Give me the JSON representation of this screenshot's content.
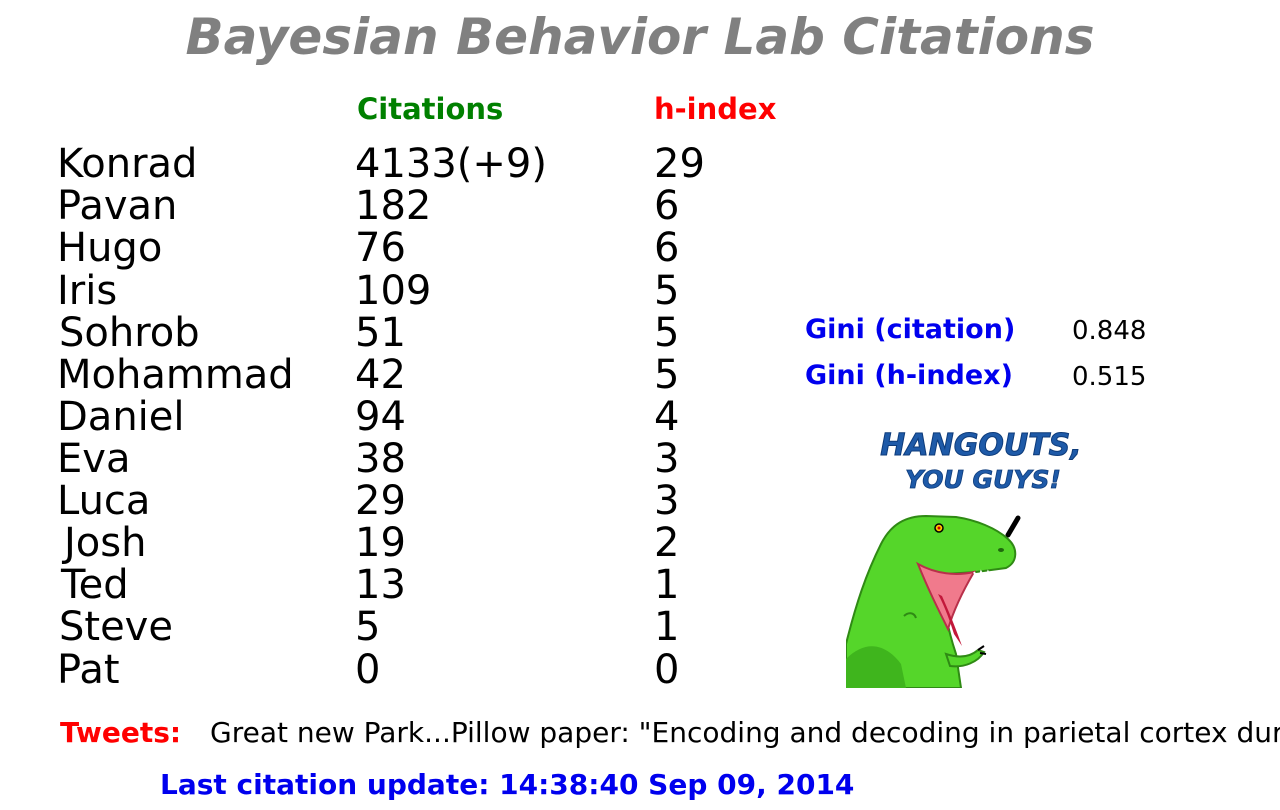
{
  "title": "Bayesian Behavior Lab Citations",
  "headers": {
    "citations": "Citations",
    "hindex": "h-index"
  },
  "rows": [
    {
      "name": "Konrad",
      "citations": "4133(+9)",
      "hindex": "29"
    },
    {
      "name": "Pavan",
      "citations": "182",
      "hindex": "6"
    },
    {
      "name": "Hugo",
      "citations": "76",
      "hindex": "6"
    },
    {
      "name": "Iris",
      "citations": "109",
      "hindex": "5"
    },
    {
      "name": "Sohrob",
      "citations": "51",
      "hindex": "5"
    },
    {
      "name": "Mohammad",
      "citations": "42",
      "hindex": "5"
    },
    {
      "name": "Daniel",
      "citations": "94",
      "hindex": "4"
    },
    {
      "name": "Eva",
      "citations": "38",
      "hindex": "3"
    },
    {
      "name": "Luca",
      "citations": "29",
      "hindex": "3"
    },
    {
      "name": "Josh",
      "citations": "19",
      "hindex": "2"
    },
    {
      "name": "Ted",
      "citations": "13",
      "hindex": "1"
    },
    {
      "name": "Steve",
      "citations": "5",
      "hindex": "1"
    },
    {
      "name": "Pat",
      "citations": "0",
      "hindex": "0"
    }
  ],
  "gini": {
    "citation_label": "Gini (citation)",
    "citation_value": "0.848",
    "hindex_label": "Gini (h-index)",
    "hindex_value": "0.515"
  },
  "meme": {
    "line1": "HANGOUTS,",
    "line2": "YOU GUYS!",
    "icon": "trex-icon"
  },
  "tweets": {
    "label": "Tweets:",
    "text": "Great new Park...Pillow paper: \"Encoding and decoding in parietal cortex duri"
  },
  "update": "Last citation update: 14:38:40 Sep 09, 2014",
  "colors": {
    "title": "#808080",
    "citations_header": "#008000",
    "hindex_header": "#ff0000",
    "gini_label": "#0000ee",
    "tweets_label": "#ff0000",
    "update": "#0000ee"
  }
}
